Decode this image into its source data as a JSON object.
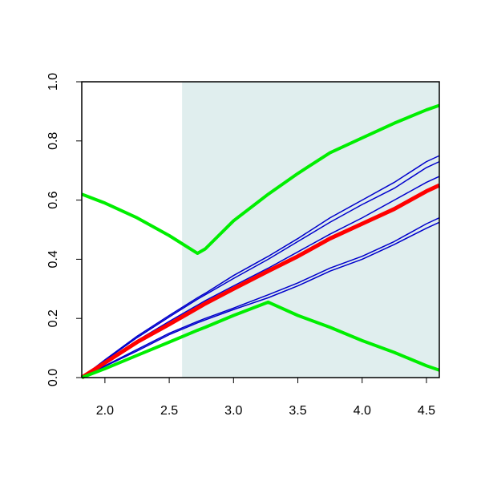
{
  "chart_data": {
    "type": "line",
    "x": [
      1.82,
      2.0,
      2.25,
      2.5,
      2.72,
      2.78,
      3.0,
      3.27,
      3.5,
      3.75,
      4.0,
      4.25,
      4.5,
      4.6
    ],
    "series": [
      {
        "color": "#0000cc",
        "width": 1.5,
        "values": [
          0,
          0.06,
          0.14,
          0.21,
          0.27,
          0.285,
          0.345,
          0.41,
          0.47,
          0.54,
          0.6,
          0.66,
          0.73,
          0.75
        ]
      },
      {
        "color": "#0000cc",
        "width": 1.5,
        "values": [
          0,
          0.058,
          0.135,
          0.205,
          0.265,
          0.28,
          0.335,
          0.4,
          0.46,
          0.525,
          0.585,
          0.64,
          0.71,
          0.73
        ]
      },
      {
        "color": "#0000cc",
        "width": 1.5,
        "values": [
          0,
          0.053,
          0.125,
          0.19,
          0.245,
          0.26,
          0.31,
          0.37,
          0.425,
          0.485,
          0.54,
          0.6,
          0.66,
          0.68
        ]
      },
      {
        "color": "#0000cc",
        "width": 1.5,
        "values": [
          0,
          0.04,
          0.095,
          0.15,
          0.19,
          0.2,
          0.235,
          0.28,
          0.32,
          0.37,
          0.41,
          0.46,
          0.52,
          0.54
        ]
      },
      {
        "color": "#0000cc",
        "width": 1.5,
        "values": [
          0,
          0.038,
          0.09,
          0.145,
          0.185,
          0.195,
          0.23,
          0.27,
          0.31,
          0.36,
          0.4,
          0.45,
          0.505,
          0.525
        ]
      },
      {
        "color": "#ff0000",
        "width": 5,
        "values": [
          0,
          0.05,
          0.12,
          0.18,
          0.235,
          0.25,
          0.3,
          0.36,
          0.41,
          0.47,
          0.52,
          0.57,
          0.63,
          0.65
        ]
      },
      {
        "color": "#00ee00",
        "width": 4,
        "values": [
          0.62,
          0.59,
          0.54,
          0.48,
          0.42,
          0.435,
          0.53,
          0.62,
          0.69,
          0.76,
          0.81,
          0.86,
          0.905,
          0.92
        ]
      },
      {
        "color": "#00ee00",
        "width": 4,
        "values": [
          0,
          0.03,
          0.075,
          0.12,
          0.16,
          0.17,
          0.21,
          0.255,
          0.21,
          0.17,
          0.125,
          0.085,
          0.04,
          0.025
        ]
      }
    ],
    "shaded_region": {
      "x": [
        2.6,
        4.6
      ],
      "color": "#e0eeee"
    },
    "xlim": [
      1.82,
      4.6
    ],
    "ylim": [
      0,
      1.0
    ],
    "xticks": [
      {
        "value": 2.0,
        "label": "2.0"
      },
      2.5,
      {
        "value": 3.0,
        "label": "3.0"
      },
      3.5,
      {
        "value": 4.0,
        "label": "4.0"
      },
      4.5
    ],
    "yticks": [
      {
        "value": 0,
        "label": "0.0"
      },
      0.2,
      0.4,
      0.6,
      0.8,
      {
        "value": 1.0,
        "label": "1.0"
      }
    ]
  }
}
